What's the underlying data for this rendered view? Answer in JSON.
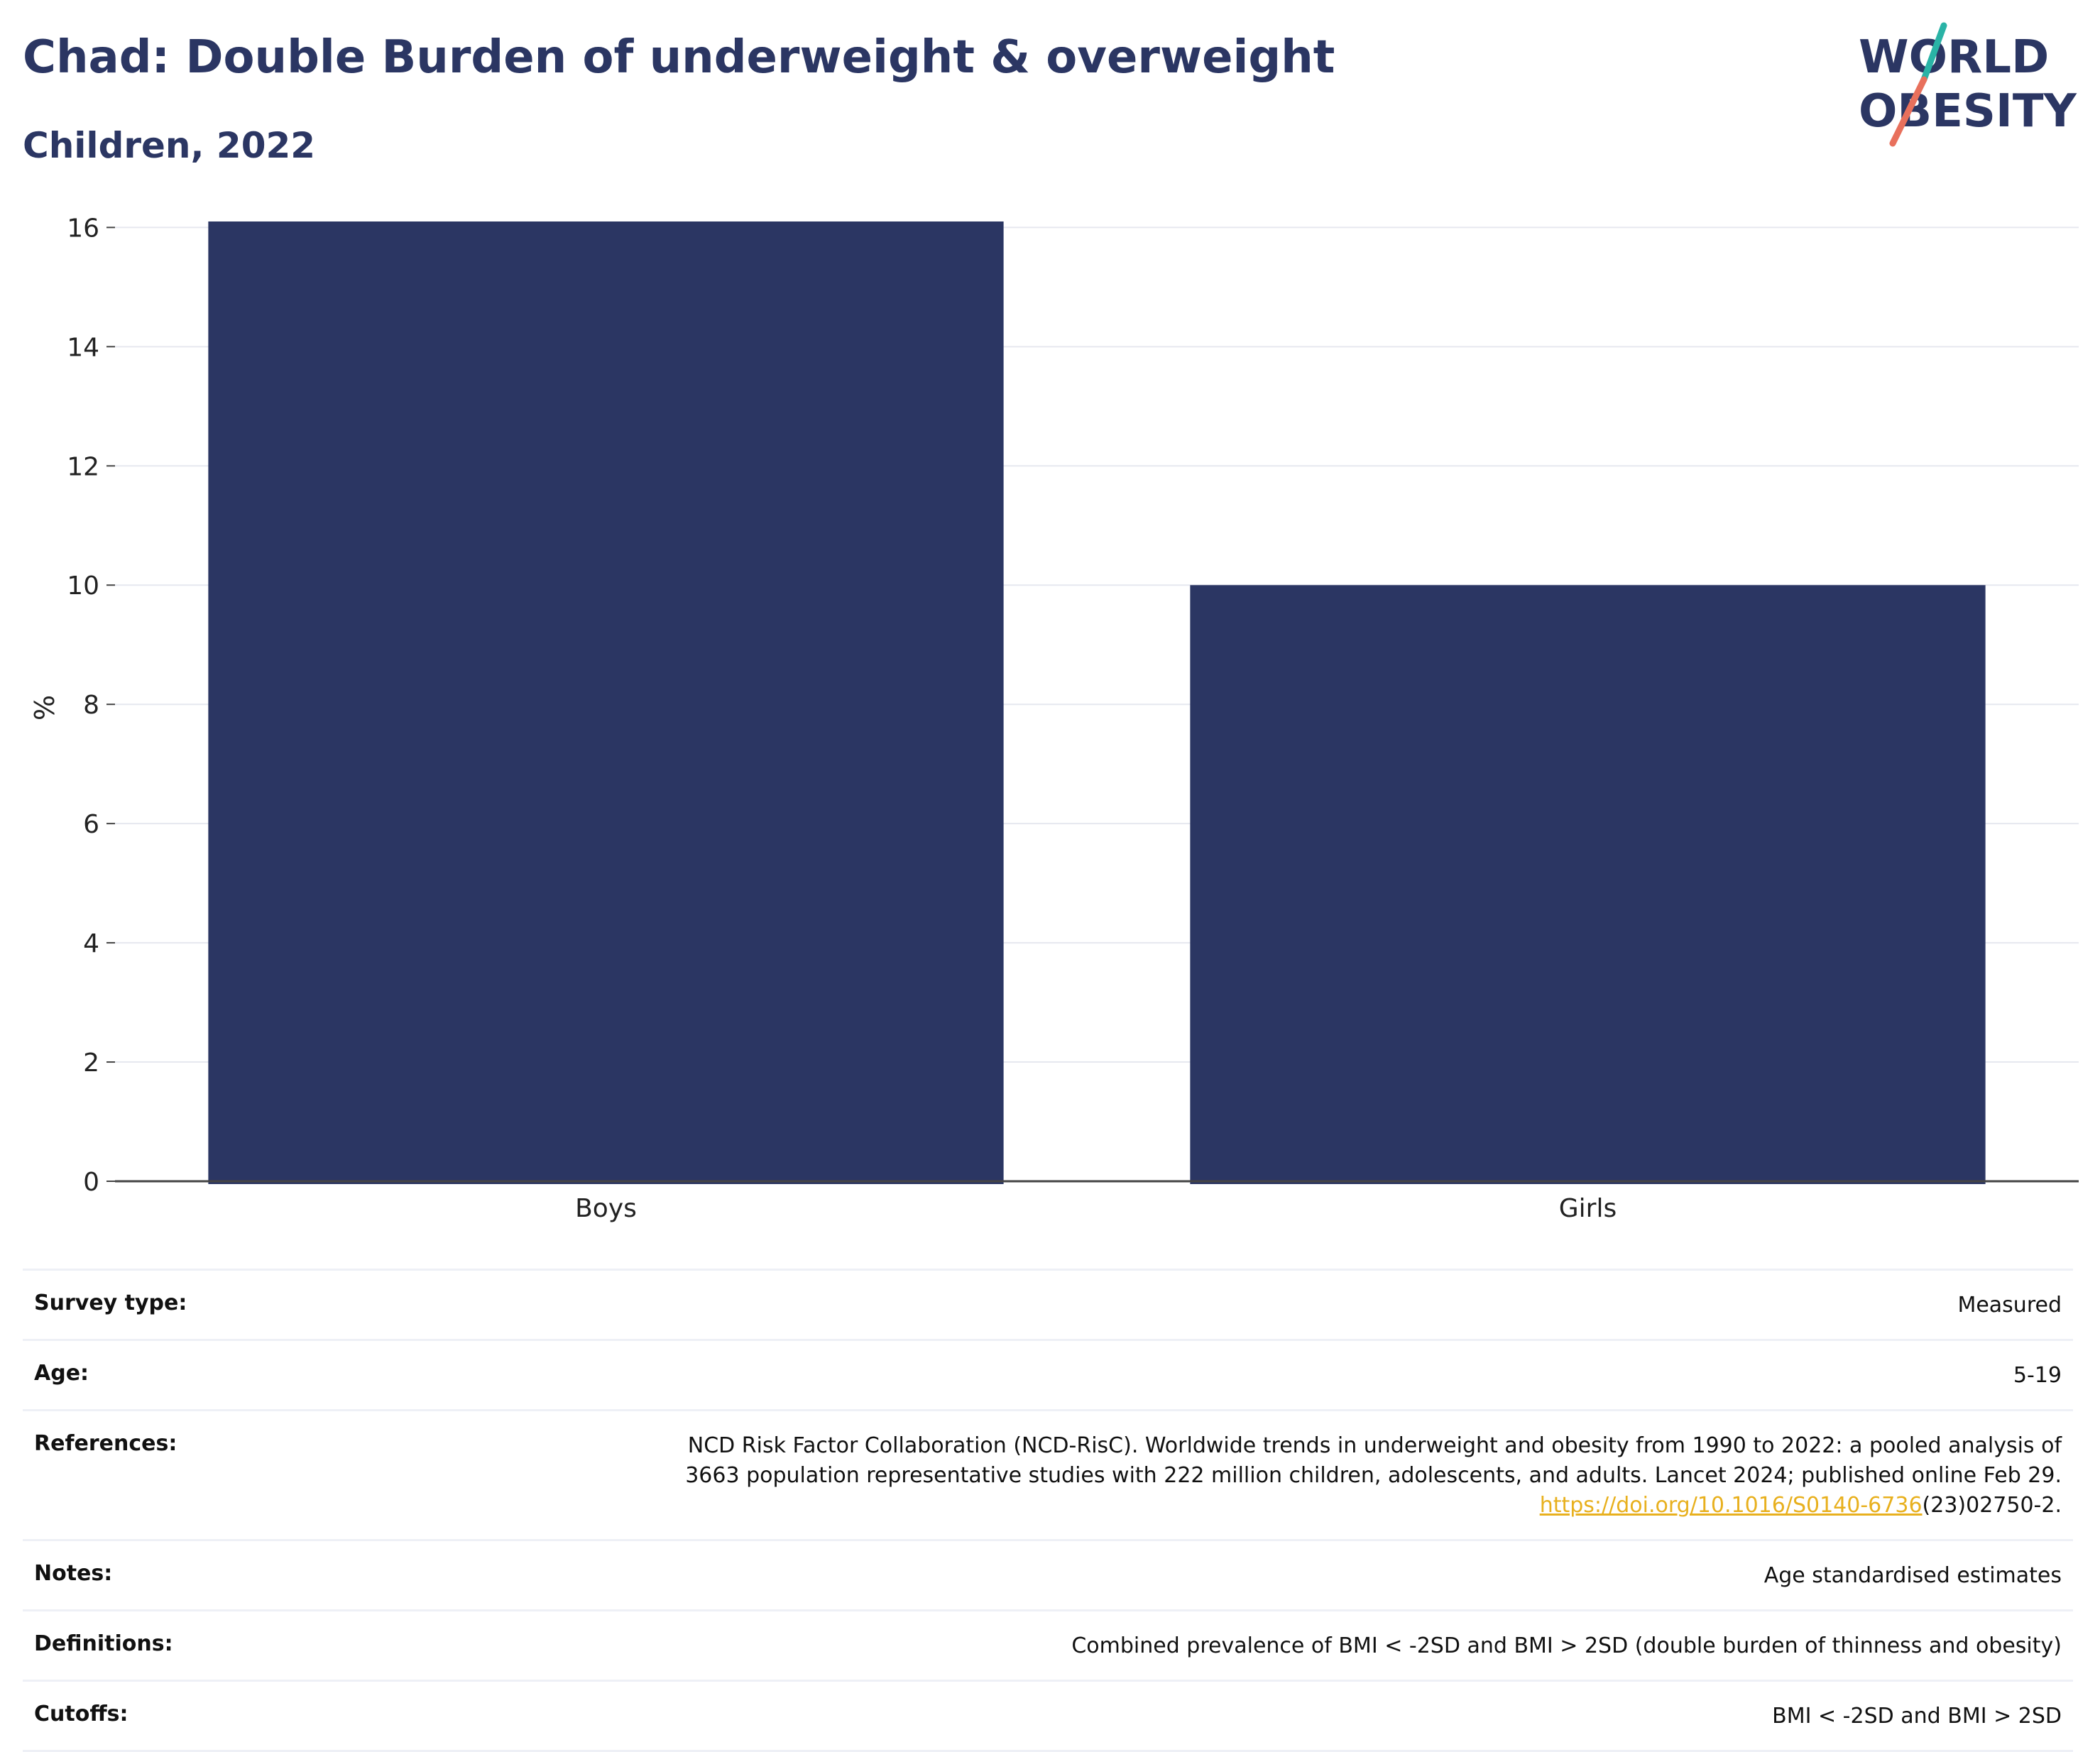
{
  "title": "Chad: Double Burden of underweight & overweight",
  "subtitle": "Children, 2022",
  "logo": {
    "line1": "WORLD",
    "line2": "OBESITY",
    "colors": {
      "text": "#2b3663",
      "slash_top": "#2ab3a6",
      "slash_bottom": "#e8705c"
    }
  },
  "chart_data": {
    "type": "bar",
    "categories": [
      "Boys",
      "Girls"
    ],
    "values": [
      16.1,
      10.0
    ],
    "ylabel": "%",
    "xlabel": "",
    "ylim": [
      0,
      16.6
    ],
    "yticks": [
      0,
      2,
      4,
      6,
      8,
      10,
      12,
      14,
      16
    ],
    "grid": true,
    "bar_color": "#2b3663"
  },
  "info": {
    "survey_type": {
      "label": "Survey type:",
      "value": "Measured"
    },
    "age": {
      "label": "Age:",
      "value": "5-19"
    },
    "references": {
      "label": "References:",
      "line1": "NCD Risk Factor Collaboration (NCD-RisC). Worldwide trends in underweight and obesity from 1990 to 2022: a pooled analysis of",
      "line2": "3663 population representative studies with 222 million children, adolescents, and adults. Lancet 2024; published online Feb 29.",
      "link": "https://doi.org/10.1016/S0140-6736",
      "link_suffix": "(23)02750-2."
    },
    "notes": {
      "label": "Notes:",
      "value": "Age standardised estimates"
    },
    "definitions": {
      "label": "Definitions:",
      "value": "Combined prevalence of BMI < -2SD and BMI > 2SD (double burden of thinness and obesity)"
    },
    "cutoffs": {
      "label": "Cutoffs:",
      "value": "BMI < -2SD and BMI > 2SD"
    }
  }
}
